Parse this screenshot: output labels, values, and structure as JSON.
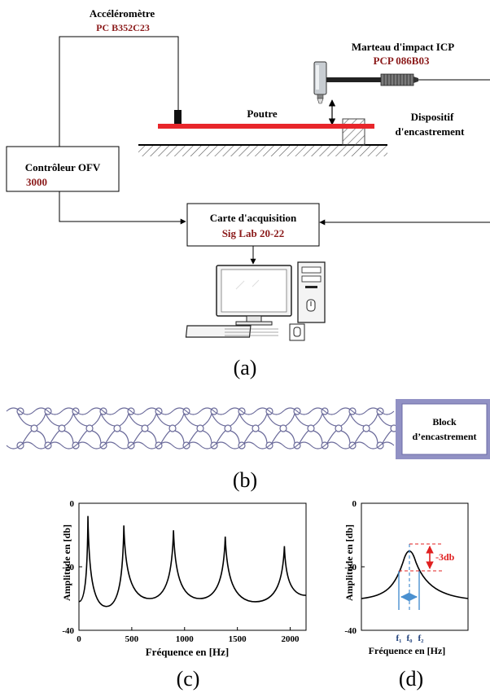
{
  "diagram": {
    "accelerometer": {
      "title": "Accéléromètre",
      "model": "PC B352C23"
    },
    "hammer": {
      "title": "Marteau d'impact  ICP",
      "model": "PCP 086B03"
    },
    "beam_label": "Poutre",
    "clamp": {
      "line1": "Dispositif",
      "line2": "d'encastrement"
    },
    "controller": {
      "title": "Contrôleur OFV",
      "model": "3000"
    },
    "acquisition": {
      "title": "Carte d'acquisition",
      "model": "Sig Lab 20-22"
    },
    "caption_a": "(a)",
    "block": {
      "line1": "Block",
      "line2": "d’encastrement"
    },
    "caption_b": "(b)",
    "caption_c": "(c)",
    "caption_d": "(d)",
    "colors": {
      "accent": "#8b1a1a",
      "beam": "#e8262b",
      "block_fill": "#9191c4",
      "arrow": "#4a90d0"
    }
  },
  "chart_data": [
    {
      "type": "line",
      "title": "",
      "xlabel": "Fréquence en [Hz]",
      "ylabel": "Amplitude en [db]",
      "xlim": [
        0,
        2150
      ],
      "ylim": [
        -40,
        0
      ],
      "xticks": [
        0,
        500,
        1000,
        1500,
        2000
      ],
      "yticks": [
        0,
        -20,
        -40
      ],
      "peaks": [
        {
          "x": 85,
          "y": -4
        },
        {
          "x": 425,
          "y": -7
        },
        {
          "x": 895,
          "y": -8.5
        },
        {
          "x": 1385,
          "y": -10.5
        },
        {
          "x": 1945,
          "y": -13.5
        }
      ],
      "valleys": [
        {
          "x": 260,
          "y": -32.5
        },
        {
          "x": 670,
          "y": -30
        },
        {
          "x": 1145,
          "y": -30
        },
        {
          "x": 1670,
          "y": -31
        }
      ],
      "start": {
        "x": 0,
        "y": -31
      },
      "end": {
        "x": 2150,
        "y": -29
      },
      "grid": false
    },
    {
      "type": "line",
      "title": "",
      "xlabel": "Fréquence en [Hz]",
      "ylabel": "Amplitude en [db]",
      "ylim": [
        -40,
        0
      ],
      "yticks": [
        0,
        -20,
        -40
      ],
      "xtick_labels": [
        "f₁",
        "f₀",
        "f₂"
      ],
      "annotation": "-3db",
      "peak_db": -13.5,
      "half_power_db": -20.5,
      "baseline_db": -30,
      "grid": false
    }
  ]
}
